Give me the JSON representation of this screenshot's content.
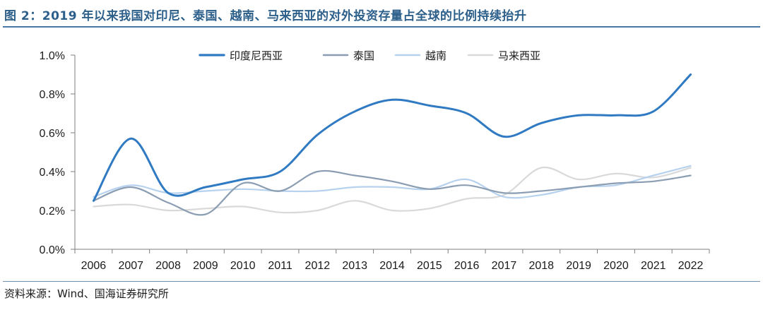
{
  "title": "图 2：2019 年以来我国对印尼、泰国、越南、马来西亚的对外投资存量占全球的比例持续抬升",
  "source": "资料来源：Wind、国海证券研究所",
  "chart_data": {
    "type": "line",
    "x": [
      "2006",
      "2007",
      "2008",
      "2009",
      "2010",
      "2011",
      "2012",
      "2013",
      "2014",
      "2015",
      "2016",
      "2017",
      "2018",
      "2019",
      "2020",
      "2021",
      "2022"
    ],
    "ylim": [
      0,
      1.0
    ],
    "yticks": [
      "0.0%",
      "0.2%",
      "0.4%",
      "0.6%",
      "0.8%",
      "1.0%"
    ],
    "legend_position": "top",
    "grid": false,
    "series": [
      {
        "name": "印度尼西亚",
        "color": "#2f7ac2",
        "width": 3,
        "values": [
          0.25,
          0.57,
          0.29,
          0.32,
          0.36,
          0.4,
          0.59,
          0.71,
          0.77,
          0.74,
          0.7,
          0.58,
          0.65,
          0.69,
          0.69,
          0.71,
          0.9
        ]
      },
      {
        "name": "泰国",
        "color": "#8a9db2",
        "width": 2.2,
        "values": [
          0.25,
          0.32,
          0.24,
          0.18,
          0.34,
          0.3,
          0.4,
          0.38,
          0.35,
          0.31,
          0.33,
          0.29,
          0.3,
          0.32,
          0.34,
          0.35,
          0.38
        ]
      },
      {
        "name": "越南",
        "color": "#b7d2ee",
        "width": 2.2,
        "values": [
          0.27,
          0.33,
          0.29,
          0.3,
          0.31,
          0.3,
          0.3,
          0.32,
          0.32,
          0.31,
          0.36,
          0.27,
          0.28,
          0.32,
          0.33,
          0.38,
          0.43
        ]
      },
      {
        "name": "马来西亚",
        "color": "#d9d9d9",
        "width": 2.2,
        "values": [
          0.22,
          0.23,
          0.2,
          0.21,
          0.22,
          0.19,
          0.2,
          0.25,
          0.2,
          0.21,
          0.26,
          0.28,
          0.42,
          0.36,
          0.39,
          0.37,
          0.42
        ]
      }
    ]
  }
}
